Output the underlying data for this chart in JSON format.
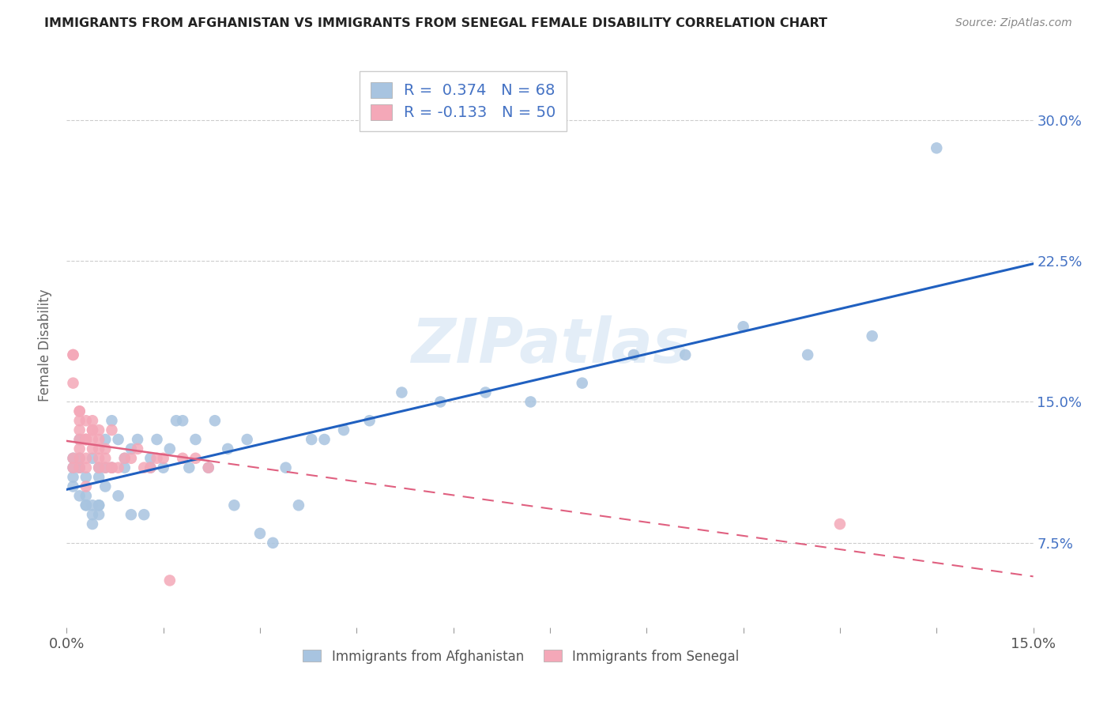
{
  "title": "IMMIGRANTS FROM AFGHANISTAN VS IMMIGRANTS FROM SENEGAL FEMALE DISABILITY CORRELATION CHART",
  "source": "Source: ZipAtlas.com",
  "ylabel": "Female Disability",
  "yticks": [
    "7.5%",
    "15.0%",
    "22.5%",
    "30.0%"
  ],
  "ytick_vals": [
    0.075,
    0.15,
    0.225,
    0.3
  ],
  "xrange": [
    0.0,
    0.15
  ],
  "yrange": [
    0.03,
    0.33
  ],
  "afghanistan_color": "#a8c4e0",
  "senegal_color": "#f4a8b8",
  "afghanistan_line_color": "#2060c0",
  "senegal_line_color": "#e06080",
  "watermark": "ZIPatlas",
  "afghanistan_x": [
    0.001,
    0.001,
    0.001,
    0.001,
    0.002,
    0.002,
    0.002,
    0.002,
    0.002,
    0.003,
    0.003,
    0.003,
    0.003,
    0.004,
    0.004,
    0.004,
    0.004,
    0.005,
    0.005,
    0.005,
    0.005,
    0.005,
    0.006,
    0.006,
    0.006,
    0.007,
    0.007,
    0.008,
    0.008,
    0.009,
    0.009,
    0.01,
    0.01,
    0.011,
    0.012,
    0.013,
    0.013,
    0.014,
    0.015,
    0.016,
    0.017,
    0.018,
    0.019,
    0.02,
    0.022,
    0.023,
    0.025,
    0.026,
    0.028,
    0.03,
    0.032,
    0.034,
    0.036,
    0.038,
    0.04,
    0.043,
    0.047,
    0.052,
    0.058,
    0.065,
    0.072,
    0.08,
    0.088,
    0.096,
    0.105,
    0.115,
    0.125,
    0.135
  ],
  "afghanistan_y": [
    0.12,
    0.115,
    0.11,
    0.105,
    0.13,
    0.12,
    0.115,
    0.1,
    0.115,
    0.095,
    0.095,
    0.11,
    0.1,
    0.12,
    0.09,
    0.095,
    0.085,
    0.095,
    0.09,
    0.115,
    0.095,
    0.11,
    0.105,
    0.115,
    0.13,
    0.14,
    0.115,
    0.13,
    0.1,
    0.115,
    0.12,
    0.125,
    0.09,
    0.13,
    0.09,
    0.12,
    0.115,
    0.13,
    0.115,
    0.125,
    0.14,
    0.14,
    0.115,
    0.13,
    0.115,
    0.14,
    0.125,
    0.095,
    0.13,
    0.08,
    0.075,
    0.115,
    0.095,
    0.13,
    0.13,
    0.135,
    0.14,
    0.155,
    0.15,
    0.155,
    0.15,
    0.16,
    0.175,
    0.175,
    0.19,
    0.175,
    0.185,
    0.285
  ],
  "senegal_x": [
    0.001,
    0.001,
    0.001,
    0.001,
    0.001,
    0.002,
    0.002,
    0.002,
    0.002,
    0.002,
    0.002,
    0.002,
    0.002,
    0.003,
    0.003,
    0.003,
    0.003,
    0.003,
    0.003,
    0.003,
    0.003,
    0.004,
    0.004,
    0.004,
    0.004,
    0.004,
    0.005,
    0.005,
    0.005,
    0.005,
    0.005,
    0.006,
    0.006,
    0.006,
    0.007,
    0.007,
    0.007,
    0.008,
    0.009,
    0.01,
    0.011,
    0.012,
    0.013,
    0.014,
    0.015,
    0.016,
    0.018,
    0.02,
    0.022,
    0.12
  ],
  "senegal_y": [
    0.12,
    0.115,
    0.175,
    0.16,
    0.175,
    0.14,
    0.145,
    0.135,
    0.13,
    0.125,
    0.145,
    0.12,
    0.115,
    0.13,
    0.115,
    0.14,
    0.13,
    0.13,
    0.105,
    0.13,
    0.12,
    0.125,
    0.135,
    0.135,
    0.13,
    0.14,
    0.13,
    0.125,
    0.115,
    0.12,
    0.135,
    0.115,
    0.125,
    0.12,
    0.135,
    0.115,
    0.115,
    0.115,
    0.12,
    0.12,
    0.125,
    0.115,
    0.115,
    0.12,
    0.12,
    0.055,
    0.12,
    0.12,
    0.115,
    0.085
  ],
  "legend_bottom_af": "Immigrants from Afghanistan",
  "legend_bottom_sn": "Immigrants from Senegal"
}
